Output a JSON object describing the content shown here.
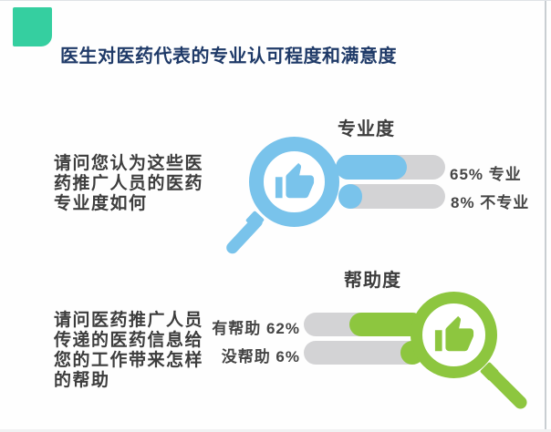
{
  "title": "医生对医药代表的专业认可程度和满意度",
  "colors": {
    "teal_square": "#35cfa0",
    "blue": "#79c3eb",
    "green": "#8dc63f",
    "bar_track_gray": "#d3d3d5",
    "title_navy": "#1f3a68",
    "body_text": "#3d3d3d"
  },
  "sections": [
    {
      "name": "专业度",
      "question": "请问您认为这些医\n药推广人员的医药\n专业度如何",
      "bars": [
        {
          "label": "65% 专业",
          "value": 65
        },
        {
          "label": "8% 不专业",
          "value": 8
        }
      ]
    },
    {
      "name": "帮助度",
      "question": "请问医药推广人员\n传递的医药信息给\n您的工作带来怎样\n的帮助",
      "bars": [
        {
          "label": "有帮助 62%",
          "value": 62
        },
        {
          "label": "没帮助 6%",
          "value": 6
        }
      ]
    }
  ],
  "chart_data": [
    {
      "type": "bar",
      "orientation": "horizontal",
      "title": "专业度",
      "question": "请问您认为这些医药推广人员的医药专业度如何",
      "categories": [
        "专业",
        "不专业"
      ],
      "values": [
        65,
        8
      ],
      "unit": "%",
      "bar_color": "#79c3eb",
      "track_color": "#d3d3d5",
      "labels_position": "right",
      "icon": "magnifier-thumbs-up"
    },
    {
      "type": "bar",
      "orientation": "horizontal-mirrored",
      "title": "帮助度",
      "question": "请问医药推广人员传递的医药信息给您的工作带来怎样的帮助",
      "categories": [
        "有帮助",
        "没帮助"
      ],
      "values": [
        62,
        6
      ],
      "unit": "%",
      "bar_color": "#8dc63f",
      "track_color": "#d3d3d5",
      "labels_position": "left",
      "icon": "magnifier-thumbs-up"
    }
  ]
}
